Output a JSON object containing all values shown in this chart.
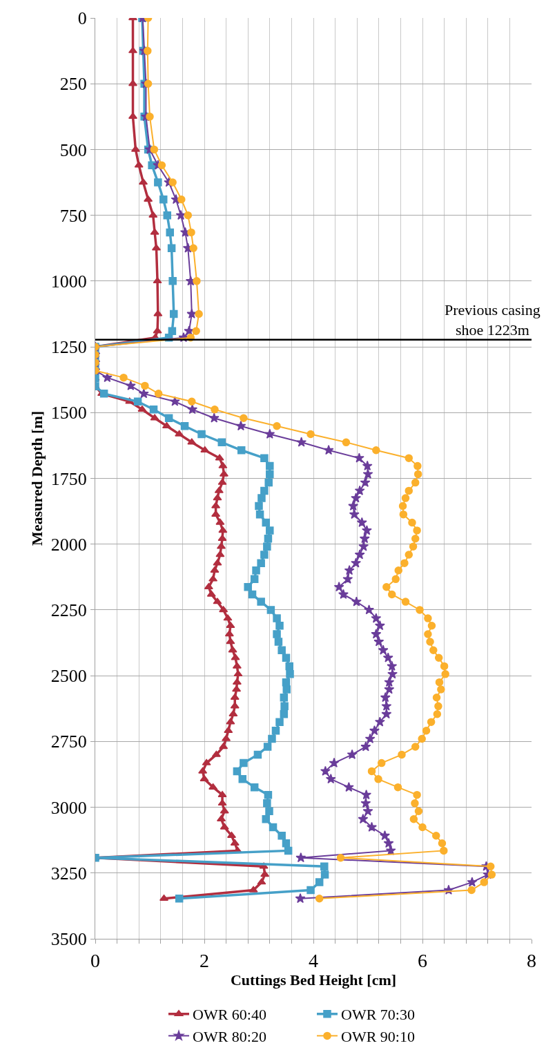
{
  "chart_data": {
    "type": "line",
    "orientation": "horizontal",
    "xlabel": "Cuttings Bed Height [cm]",
    "ylabel": "Measured Depth [m]",
    "xlim": [
      0,
      8
    ],
    "ylim": [
      3500,
      0
    ],
    "xticks": [
      0,
      {
        "value": 0.4,
        "label": null
      },
      {
        "value": 0.8,
        "label": null
      },
      {
        "value": 1.2,
        "label": null
      },
      {
        "value": 1.6,
        "label": null
      },
      2,
      {
        "value": 2.4,
        "label": null
      },
      {
        "value": 2.8,
        "label": null
      },
      {
        "value": 3.2,
        "label": null
      },
      {
        "value": 3.6,
        "label": null
      },
      4,
      {
        "value": 4.4,
        "label": null
      },
      {
        "value": 4.8,
        "label": null
      },
      {
        "value": 5.2,
        "label": null
      },
      {
        "value": 5.6,
        "label": null
      },
      6,
      {
        "value": 6.4,
        "label": null
      },
      {
        "value": 6.8,
        "label": null
      },
      {
        "value": 7.2,
        "label": null
      },
      {
        "value": 7.6,
        "label": null
      },
      8
    ],
    "yticks": [
      0,
      250,
      500,
      750,
      1000,
      1250,
      1500,
      1750,
      2000,
      2250,
      2500,
      2750,
      3000,
      3250,
      3500
    ],
    "grid": true,
    "legend": "bottom",
    "ref_lines": [
      {
        "axis": "y",
        "value": 1223,
        "color": "#000000",
        "label": "Previous casing\nshoe 1223m"
      }
    ],
    "series": [
      {
        "name": "OWR 60:40",
        "color": "#b22e3f",
        "marker": "triangle",
        "x": [
          0,
          125,
          250,
          375,
          500,
          560,
          625,
          690,
          750,
          815,
          875,
          1000,
          1125,
          1190,
          1215,
          1250,
          1280,
          1310,
          1340,
          1370,
          1400,
          1428,
          1458,
          1488,
          1521,
          1551,
          1582,
          1613,
          1643,
          1673,
          1703,
          1734,
          1766,
          1797,
          1825,
          1855,
          1887,
          1918,
          1948,
          1979,
          2009,
          2040,
          2072,
          2100,
          2133,
          2163,
          2191,
          2219,
          2250,
          2282,
          2310,
          2342,
          2371,
          2403,
          2432,
          2464,
          2494,
          2525,
          2552,
          2583,
          2616,
          2646,
          2676,
          2709,
          2740,
          2770,
          2800,
          2832,
          2863,
          2893,
          2924,
          2953,
          2985,
          3015,
          3045,
          3076,
          3108,
          3137,
          3165,
          3192,
          3225,
          3256,
          3285,
          3315,
          3347
        ],
        "values": [
          0.69,
          0.69,
          0.69,
          0.69,
          0.74,
          0.8,
          0.88,
          0.97,
          1.06,
          1.09,
          1.12,
          1.14,
          1.15,
          1.14,
          1.1,
          0,
          0,
          0,
          0,
          0,
          0,
          0.12,
          0.63,
          0.86,
          1.09,
          1.31,
          1.54,
          1.77,
          2.01,
          2.28,
          2.34,
          2.36,
          2.33,
          2.27,
          2.24,
          2.21,
          2.21,
          2.29,
          2.34,
          2.33,
          2.31,
          2.29,
          2.24,
          2.19,
          2.16,
          2.08,
          2.13,
          2.24,
          2.35,
          2.43,
          2.48,
          2.46,
          2.48,
          2.52,
          2.57,
          2.6,
          2.62,
          2.6,
          2.59,
          2.56,
          2.56,
          2.53,
          2.48,
          2.44,
          2.4,
          2.35,
          2.22,
          2.04,
          1.97,
          2.0,
          2.16,
          2.33,
          2.33,
          2.37,
          2.31,
          2.37,
          2.5,
          2.56,
          2.61,
          0,
          3.09,
          3.11,
          3.05,
          2.9,
          1.26
        ]
      },
      {
        "name": "OWR 70:30",
        "color": "#46a0c8",
        "marker": "square",
        "x": [
          0,
          125,
          250,
          375,
          500,
          560,
          625,
          690,
          750,
          815,
          875,
          1000,
          1125,
          1190,
          1215,
          1250,
          1280,
          1310,
          1340,
          1370,
          1400,
          1428,
          1458,
          1488,
          1521,
          1551,
          1582,
          1613,
          1643,
          1673,
          1703,
          1734,
          1766,
          1797,
          1825,
          1855,
          1887,
          1918,
          1948,
          1979,
          2009,
          2040,
          2072,
          2100,
          2133,
          2163,
          2191,
          2219,
          2250,
          2282,
          2310,
          2342,
          2371,
          2403,
          2432,
          2464,
          2494,
          2525,
          2552,
          2583,
          2616,
          2646,
          2676,
          2709,
          2740,
          2770,
          2800,
          2832,
          2863,
          2893,
          2924,
          2953,
          2985,
          3015,
          3045,
          3076,
          3108,
          3137,
          3165,
          3192,
          3225,
          3256,
          3285,
          3315,
          3347
        ],
        "values": [
          0.86,
          0.88,
          0.9,
          0.9,
          0.97,
          1.04,
          1.15,
          1.25,
          1.32,
          1.37,
          1.4,
          1.42,
          1.44,
          1.41,
          1.35,
          0,
          0,
          0,
          0,
          0,
          0,
          0.16,
          0.78,
          1.07,
          1.35,
          1.64,
          1.95,
          2.32,
          2.68,
          3.1,
          3.2,
          3.2,
          3.18,
          3.1,
          3.05,
          3.0,
          3.02,
          3.13,
          3.2,
          3.17,
          3.15,
          3.1,
          3.04,
          2.95,
          2.92,
          2.8,
          2.88,
          3.04,
          3.22,
          3.33,
          3.38,
          3.33,
          3.36,
          3.42,
          3.5,
          3.56,
          3.57,
          3.5,
          3.51,
          3.46,
          3.47,
          3.46,
          3.38,
          3.31,
          3.24,
          3.16,
          2.98,
          2.72,
          2.6,
          2.7,
          2.92,
          3.17,
          3.15,
          3.19,
          3.13,
          3.26,
          3.42,
          3.5,
          3.54,
          0,
          4.2,
          4.21,
          4.11,
          3.95,
          1.54
        ]
      },
      {
        "name": "OWR 80:20",
        "color": "#6a3d9a",
        "marker": "star",
        "x": [
          0,
          125,
          250,
          375,
          500,
          560,
          625,
          690,
          750,
          815,
          875,
          1000,
          1125,
          1190,
          1215,
          1250,
          1280,
          1310,
          1340,
          1367,
          1398,
          1428,
          1458,
          1488,
          1521,
          1551,
          1582,
          1613,
          1643,
          1673,
          1703,
          1734,
          1766,
          1797,
          1825,
          1855,
          1887,
          1918,
          1948,
          1979,
          2009,
          2040,
          2072,
          2100,
          2133,
          2163,
          2191,
          2219,
          2250,
          2282,
          2310,
          2342,
          2371,
          2403,
          2432,
          2464,
          2494,
          2525,
          2552,
          2583,
          2616,
          2646,
          2676,
          2709,
          2740,
          2770,
          2800,
          2832,
          2863,
          2893,
          2924,
          2953,
          2985,
          3015,
          3045,
          3076,
          3108,
          3137,
          3165,
          3192,
          3225,
          3256,
          3285,
          3315,
          3347
        ],
        "values": [
          0.87,
          0.9,
          0.93,
          0.93,
          1.0,
          1.15,
          1.35,
          1.48,
          1.57,
          1.65,
          1.7,
          1.75,
          1.77,
          1.72,
          1.62,
          0,
          0,
          0,
          0,
          0.22,
          0.65,
          0.89,
          1.46,
          1.78,
          2.18,
          2.67,
          3.2,
          3.78,
          4.28,
          4.84,
          4.99,
          5.0,
          4.95,
          4.85,
          4.78,
          4.73,
          4.75,
          4.89,
          4.98,
          4.94,
          4.92,
          4.85,
          4.78,
          4.66,
          4.63,
          4.47,
          4.55,
          4.79,
          5.02,
          5.15,
          5.22,
          5.15,
          5.2,
          5.28,
          5.37,
          5.44,
          5.45,
          5.39,
          5.39,
          5.32,
          5.34,
          5.34,
          5.22,
          5.12,
          5.04,
          4.96,
          4.71,
          4.38,
          4.22,
          4.32,
          4.65,
          4.97,
          4.96,
          5.0,
          4.91,
          5.07,
          5.31,
          5.38,
          5.42,
          3.77,
          7.17,
          7.2,
          6.91,
          6.48,
          3.76
        ]
      },
      {
        "name": "OWR 90:10",
        "color": "#fbb02c",
        "marker": "circle",
        "x": [
          0,
          125,
          250,
          375,
          500,
          560,
          625,
          690,
          750,
          815,
          875,
          1000,
          1125,
          1190,
          1215,
          1250,
          1280,
          1310,
          1340,
          1367,
          1398,
          1428,
          1458,
          1488,
          1521,
          1551,
          1582,
          1613,
          1643,
          1673,
          1703,
          1734,
          1766,
          1797,
          1825,
          1855,
          1887,
          1918,
          1948,
          1979,
          2009,
          2040,
          2072,
          2100,
          2133,
          2163,
          2191,
          2219,
          2250,
          2282,
          2310,
          2342,
          2371,
          2403,
          2432,
          2464,
          2494,
          2525,
          2552,
          2583,
          2616,
          2646,
          2676,
          2709,
          2740,
          2770,
          2800,
          2832,
          2863,
          2893,
          2924,
          2953,
          2985,
          3015,
          3045,
          3076,
          3108,
          3137,
          3165,
          3192,
          3225,
          3256,
          3285,
          3315,
          3347
        ],
        "values": [
          0.97,
          0.96,
          0.97,
          1.0,
          1.08,
          1.22,
          1.42,
          1.58,
          1.7,
          1.76,
          1.8,
          1.86,
          1.9,
          1.85,
          1.75,
          0,
          0,
          0,
          0,
          0.52,
          0.91,
          1.16,
          1.77,
          2.19,
          2.72,
          3.33,
          3.95,
          4.6,
          5.15,
          5.75,
          5.91,
          5.92,
          5.87,
          5.75,
          5.69,
          5.64,
          5.65,
          5.81,
          5.9,
          5.87,
          5.83,
          5.75,
          5.67,
          5.56,
          5.51,
          5.34,
          5.44,
          5.69,
          5.95,
          6.1,
          6.17,
          6.1,
          6.14,
          6.2,
          6.3,
          6.4,
          6.42,
          6.31,
          6.34,
          6.26,
          6.29,
          6.27,
          6.16,
          6.07,
          5.99,
          5.87,
          5.62,
          5.25,
          5.07,
          5.19,
          5.55,
          5.9,
          5.86,
          5.93,
          5.84,
          6.0,
          6.25,
          6.36,
          6.39,
          4.5,
          7.25,
          7.27,
          7.13,
          6.9,
          4.11
        ]
      }
    ]
  }
}
